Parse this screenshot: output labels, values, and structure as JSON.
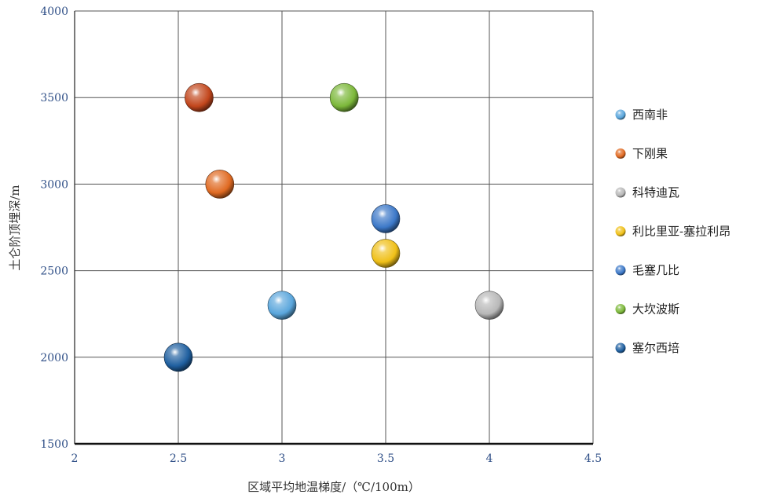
{
  "chart_data": {
    "type": "scatter",
    "xlabel": "区域平均地温梯度/（℃/100m）",
    "ylabel": "土仑阶顶埋深/m",
    "xlim": [
      2,
      4.5
    ],
    "ylim": [
      1500,
      4000
    ],
    "xticks": [
      "2",
      "2.5",
      "3",
      "3.5",
      "4",
      "4.5"
    ],
    "yticks": [
      "1500",
      "2000",
      "2500",
      "3000",
      "3500",
      "4000"
    ],
    "grid": true,
    "legend_position": "right",
    "series": [
      {
        "name": "西南非",
        "color": "#5aa6dc",
        "points": [
          {
            "x": 3.0,
            "y": 2300
          }
        ]
      },
      {
        "name": "下刚果",
        "color": "#e06a22",
        "points": [
          {
            "x": 2.7,
            "y": 3000
          }
        ]
      },
      {
        "name": "科特迪瓦",
        "color": "#b8b8b8",
        "points": [
          {
            "x": 4.0,
            "y": 2300
          }
        ]
      },
      {
        "name": "利比里亚-塞拉利昂",
        "color": "#f0c018",
        "points": [
          {
            "x": 3.5,
            "y": 2600
          }
        ]
      },
      {
        "name": "毛塞几比",
        "color": "#3c78c8",
        "points": [
          {
            "x": 3.5,
            "y": 2800
          }
        ]
      },
      {
        "name": "大坎波斯",
        "color": "#7cb83a",
        "points": [
          {
            "x": 3.3,
            "y": 3500
          }
        ]
      },
      {
        "name": "塞尔西培",
        "color": "#1f5f9f",
        "points": [
          {
            "x": 2.5,
            "y": 2000
          }
        ]
      },
      {
        "name": "",
        "color": "#c2461c",
        "points": [
          {
            "x": 2.6,
            "y": 3500
          }
        ]
      }
    ]
  }
}
